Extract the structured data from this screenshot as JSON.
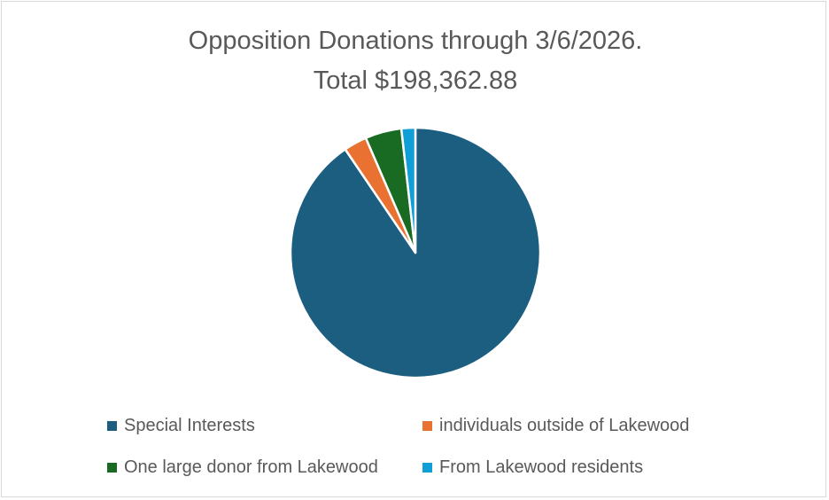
{
  "chart_data": {
    "type": "pie",
    "title": "Opposition Donations through 3/6/2026.",
    "subtitle": "Total $198,362.88",
    "categories": [
      "Special Interests",
      "individuals outside of Lakewood",
      "One large donor from Lakewood",
      "From Lakewood residents"
    ],
    "values": [
      90.5,
      3.0,
      4.7,
      1.8
    ],
    "value_unit": "% of total",
    "colors": [
      "#1b5e80",
      "#e97132",
      "#196b24",
      "#0f9ed5"
    ],
    "slice_border": "#ffffff",
    "legend_position": "bottom",
    "start_angle": "12 o'clock",
    "direction": "clockwise"
  }
}
